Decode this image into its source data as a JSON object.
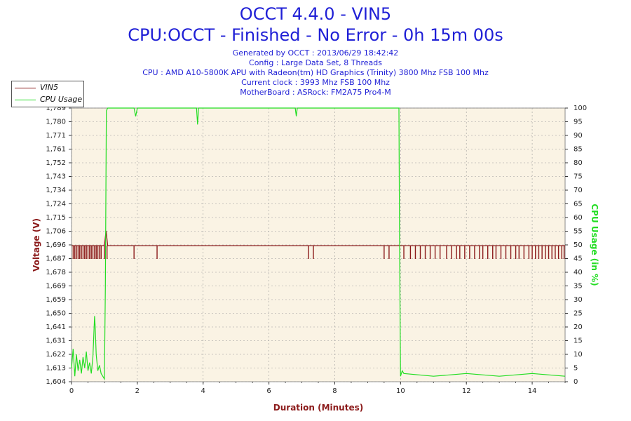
{
  "title": "OCCT 4.4.0 - VIN5",
  "subtitle": "CPU:OCCT - Finished - No Error - 0h 15m 00s",
  "info_lines": [
    "Generated by OCCT : 2013/06/29 18:42:42",
    "Config : Large Data Set, 8 Threads",
    "CPU : AMD A10-5800K APU with Radeon(tm) HD Graphics (Trinity) 3800 Mhz FSB 100 Mhz",
    "Current clock : 3993 Mhz FSB 100 Mhz",
    "MotherBoard : ASRock: FM2A75 Pro4-M"
  ],
  "colors": {
    "title": "#1f1fd6",
    "vin5": "#8b1a1a",
    "cpu": "#22dd22",
    "plot_bg": "#faf3e4"
  },
  "chart_data": {
    "type": "line",
    "xlabel": "Duration (Minutes)",
    "ylabel_left": "Voltage (V)",
    "ylabel_right": "CPU Usage (in %)",
    "xlim": [
      0,
      15
    ],
    "ylim_left": [
      1.604,
      1.789
    ],
    "ylim_right": [
      0,
      100
    ],
    "x_ticks": [
      "0",
      "2",
      "4",
      "6",
      "8",
      "10",
      "12",
      "14"
    ],
    "y_left_ticks": [
      "1,604",
      "1,613",
      "1,622",
      "1,631",
      "1,641",
      "1,650",
      "1,659",
      "1,669",
      "1,678",
      "1,687",
      "1,696",
      "1,706",
      "1,715",
      "1,724",
      "1,734",
      "1,743",
      "1,752",
      "1,761",
      "1,771",
      "1,780",
      "1,789"
    ],
    "y_right_ticks": [
      "0",
      "5",
      "10",
      "15",
      "20",
      "25",
      "30",
      "35",
      "40",
      "45",
      "50",
      "55",
      "60",
      "65",
      "70",
      "75",
      "80",
      "85",
      "90",
      "95",
      "100"
    ],
    "grid": true,
    "legend_position": "top-left",
    "series": [
      {
        "name": "VIN5",
        "axis": "left",
        "x": [
          0,
          0.5,
          1.0,
          1.05,
          1.1,
          2.0,
          2.6,
          4.0,
          7.3,
          7.4,
          9.5,
          9.95,
          10.0,
          10.5,
          11.0,
          12.0,
          13.0,
          13.5,
          14.0,
          14.5,
          15.0
        ],
        "y": [
          1.696,
          1.696,
          1.696,
          1.706,
          1.696,
          1.696,
          1.696,
          1.696,
          1.696,
          1.696,
          1.696,
          1.696,
          1.696,
          1.696,
          1.696,
          1.696,
          1.696,
          1.696,
          1.696,
          1.696,
          1.696
        ],
        "dip_value": 1.687,
        "dip_x": [
          0.05,
          0.1,
          0.15,
          0.2,
          0.25,
          0.3,
          0.35,
          0.4,
          0.45,
          0.5,
          0.55,
          0.6,
          0.65,
          0.7,
          0.75,
          0.8,
          0.85,
          0.9,
          1.0,
          1.08,
          1.9,
          2.6,
          7.2,
          7.35,
          9.5,
          9.65,
          10.1,
          10.3,
          10.45,
          10.6,
          10.75,
          10.9,
          11.05,
          11.2,
          11.4,
          11.55,
          11.7,
          11.8,
          11.95,
          12.1,
          12.25,
          12.4,
          12.5,
          12.65,
          12.8,
          12.9,
          13.05,
          13.2,
          13.35,
          13.5,
          13.6,
          13.75,
          13.9,
          14.0,
          14.1,
          14.2,
          14.3,
          14.4,
          14.5,
          14.6,
          14.7,
          14.8,
          14.9,
          14.97
        ]
      },
      {
        "name": "CPU Usage",
        "axis": "right",
        "x": [
          0,
          0.05,
          0.1,
          0.15,
          0.2,
          0.25,
          0.3,
          0.35,
          0.4,
          0.45,
          0.5,
          0.55,
          0.6,
          0.65,
          0.7,
          0.72,
          0.75,
          0.8,
          0.85,
          0.9,
          0.95,
          1.0,
          1.03,
          1.06,
          1.1,
          1.9,
          1.95,
          2.0,
          3.8,
          3.83,
          3.86,
          6.8,
          6.83,
          6.86,
          9.95,
          9.97,
          10.0,
          10.05,
          10.1,
          11.0,
          12.0,
          13.0,
          14.0,
          15.0
        ],
        "y": [
          5,
          12,
          2,
          10,
          4,
          8,
          3,
          9,
          5,
          11,
          4,
          7,
          3,
          9,
          24,
          20,
          10,
          4,
          6,
          3,
          2,
          1,
          35,
          99,
          100,
          100,
          97,
          100,
          100,
          94,
          100,
          100,
          97,
          100,
          100,
          50,
          2,
          4,
          3,
          2,
          3,
          2,
          3,
          2
        ]
      }
    ]
  }
}
